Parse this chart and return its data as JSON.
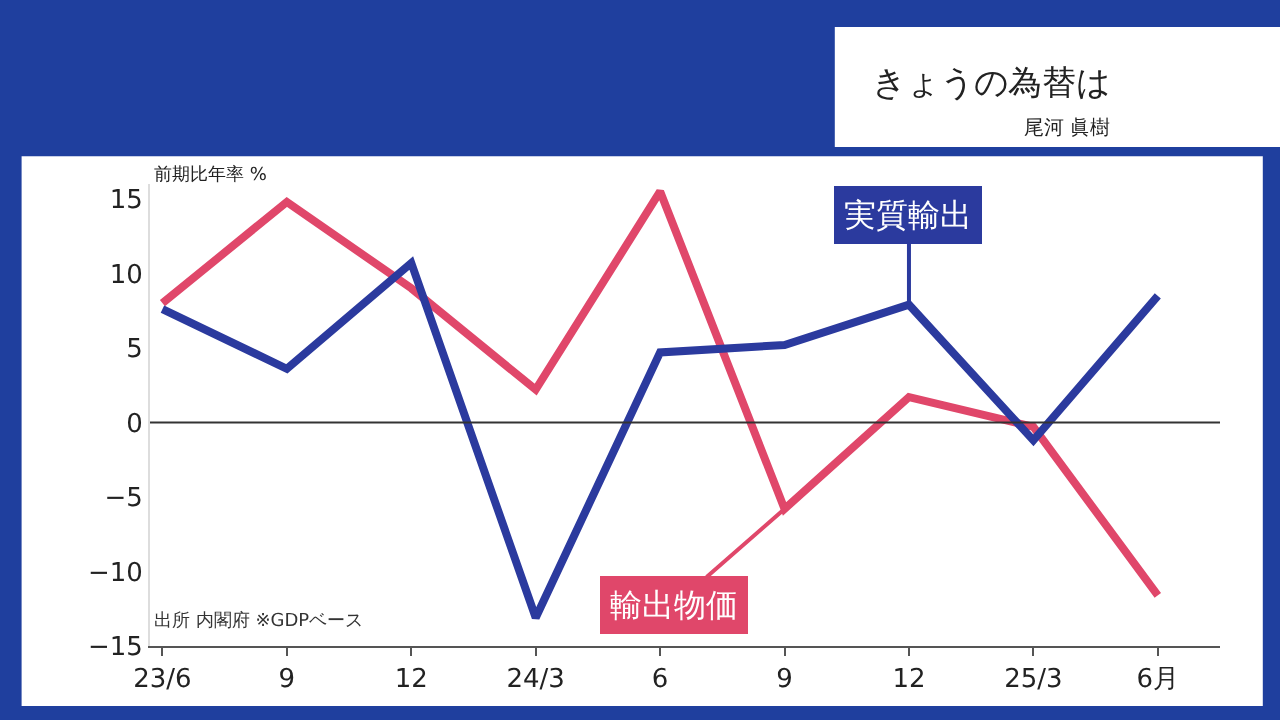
{
  "chart_data": {
    "type": "line",
    "title": "きょうの為替は",
    "subtitle": "尾河 眞樹",
    "ylabel": "前期比年率 %",
    "categories": [
      "23/6",
      "9",
      "12",
      "24/3",
      "6",
      "9",
      "12",
      "25/3",
      "6月"
    ],
    "series": [
      {
        "name": "輸出物価",
        "color": "#e0476a",
        "values": [
          8.0,
          14.8,
          9.0,
          2.2,
          15.5,
          -5.8,
          1.7,
          -0.3,
          -11.6
        ]
      },
      {
        "name": "実質輸出",
        "color": "#2b3a9e",
        "values": [
          7.6,
          3.6,
          10.7,
          -13.1,
          4.7,
          5.2,
          7.9,
          -1.2,
          8.5
        ]
      }
    ],
    "ylim": [
      -15,
      16
    ],
    "yticks": [
      -15,
      -10,
      -5,
      0,
      5,
      10,
      15
    ],
    "ref_lines": [
      {
        "axis": "y",
        "value": 0,
        "color": "#333333"
      }
    ],
    "annotations": [
      "出所 内閣府 ※GDPベース"
    ],
    "grid": false,
    "marker": "none",
    "line_style": "solid"
  }
}
